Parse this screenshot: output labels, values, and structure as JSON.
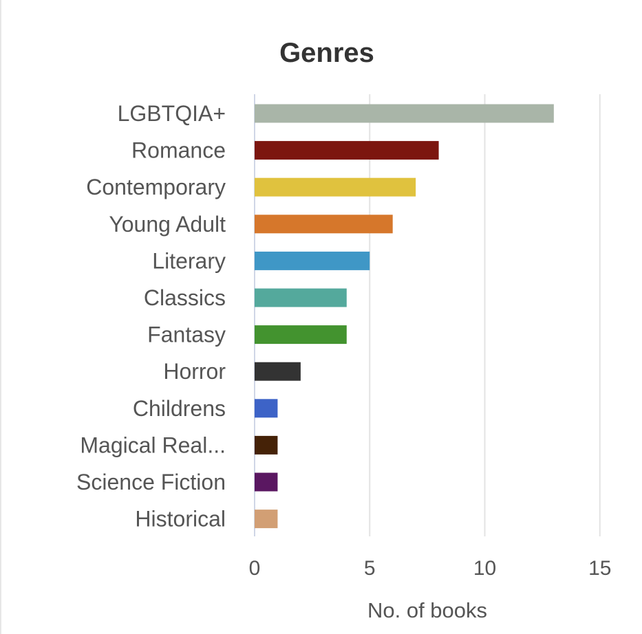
{
  "chart_data": {
    "type": "bar",
    "orientation": "horizontal",
    "title": "Genres",
    "xlabel": "No. of books",
    "ylabel": "",
    "xlim": [
      0,
      15
    ],
    "xticks": [
      0,
      5,
      10,
      15
    ],
    "grid": true,
    "categories": [
      "LGBTQIA+",
      "Romance",
      "Contemporary",
      "Young Adult",
      "Literary",
      "Classics",
      "Fantasy",
      "Horror",
      "Childrens",
      "Magical Real...",
      "Science Fiction",
      "Historical"
    ],
    "values": [
      13,
      8,
      7,
      6,
      5,
      4,
      4,
      2,
      1,
      1,
      1,
      1
    ],
    "colors": [
      "#a9b5a8",
      "#7c160f",
      "#e0c23e",
      "#d6772b",
      "#3f97c6",
      "#54a99c",
      "#43932f",
      "#333333",
      "#3d63c7",
      "#452207",
      "#5a1761",
      "#d29f74"
    ]
  }
}
